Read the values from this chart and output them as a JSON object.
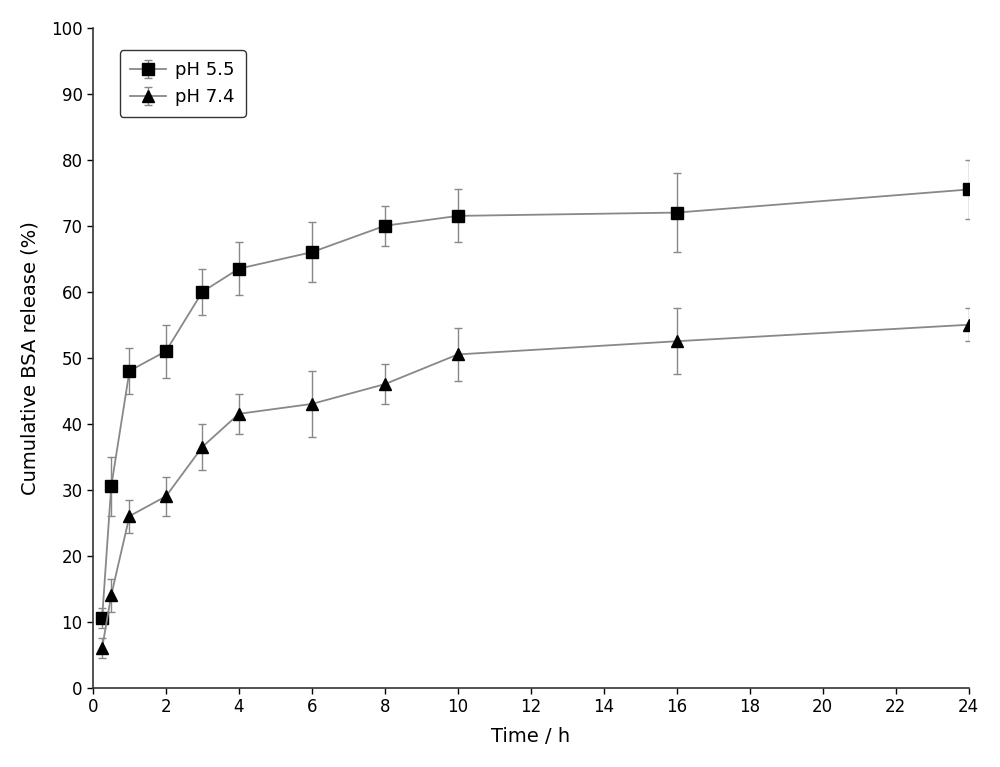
{
  "ph55_x": [
    0.25,
    0.5,
    1,
    2,
    3,
    4,
    6,
    8,
    10,
    16,
    24
  ],
  "ph55_y": [
    10.5,
    30.5,
    48,
    51,
    60,
    63.5,
    66,
    70,
    71.5,
    72,
    75.5
  ],
  "ph55_err": [
    1.5,
    4.5,
    3.5,
    4,
    3.5,
    4,
    4.5,
    3,
    4,
    6,
    4.5
  ],
  "ph74_x": [
    0.25,
    0.5,
    1,
    2,
    3,
    4,
    6,
    8,
    10,
    16,
    24
  ],
  "ph74_y": [
    6,
    14,
    26,
    29,
    36.5,
    41.5,
    43,
    46,
    50.5,
    52.5,
    55
  ],
  "ph74_err": [
    1.5,
    2.5,
    2.5,
    3,
    3.5,
    3,
    5,
    3,
    4,
    5,
    2.5
  ],
  "xlabel": "Time / h",
  "ylabel": "Cumulative BSA release (%)",
  "xlim": [
    0,
    24
  ],
  "ylim": [
    0,
    100
  ],
  "xticks": [
    0,
    2,
    4,
    6,
    8,
    10,
    12,
    14,
    16,
    18,
    20,
    22,
    24
  ],
  "yticks": [
    0,
    10,
    20,
    30,
    40,
    50,
    60,
    70,
    80,
    90,
    100
  ],
  "legend_ph55": "pH 5.5",
  "legend_ph74": "pH 7.4",
  "line_color": "#888888",
  "marker_color": "#000000",
  "background_color": "#ffffff",
  "marker_size": 8,
  "line_width": 1.3,
  "capsize": 3,
  "label_fontsize": 14,
  "tick_fontsize": 12,
  "legend_fontsize": 13
}
